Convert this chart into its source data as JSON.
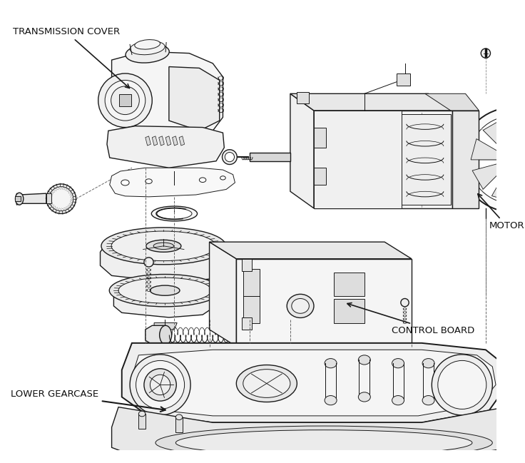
{
  "background_color": "#ffffff",
  "labels": {
    "transmission_cover": "TRANSMISSION COVER",
    "motor": "MOTOR",
    "control_board": "CONTROL BOARD",
    "lower_gearcase": "LOWER GEARCASE"
  },
  "line_color": "#1a1a1a",
  "text_color": "#111111",
  "label_fontsize": 9.5,
  "lw_thin": 0.7,
  "lw_med": 1.0,
  "lw_thick": 1.4
}
